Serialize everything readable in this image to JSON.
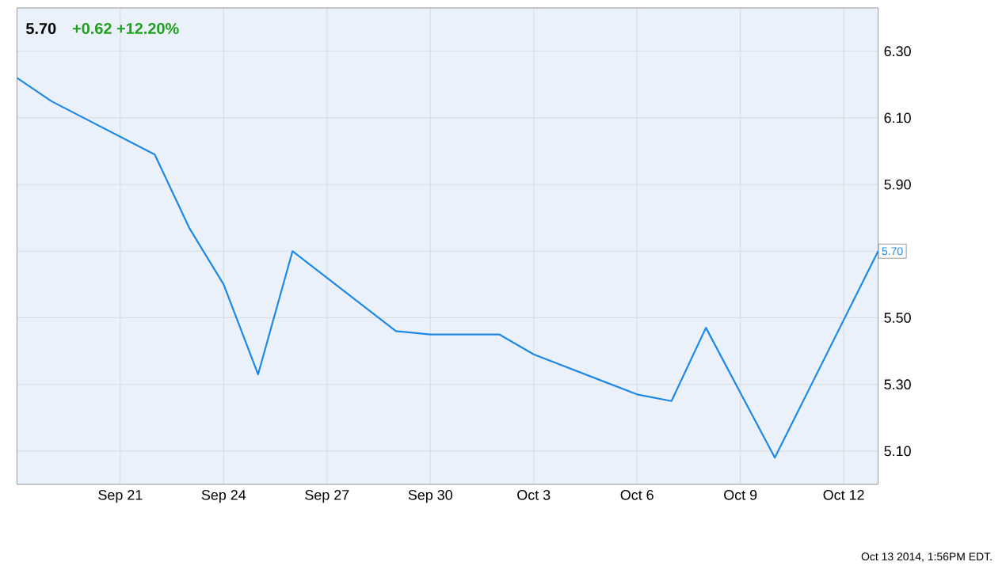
{
  "chart_data": {
    "type": "line",
    "title": "5.70",
    "subtitle": "+0.62 +12.20%",
    "annotations": [
      {
        "text": "5.70",
        "x": "2014-10-13",
        "y": 5.7
      },
      "Oct 13 2014, 1:56PM EDT."
    ],
    "x": [
      "2014-09-18",
      "2014-09-19",
      "2014-09-22",
      "2014-09-23",
      "2014-09-24",
      "2014-09-25",
      "2014-09-26",
      "2014-09-29",
      "2014-09-30",
      "2014-10-02",
      "2014-10-03",
      "2014-10-06",
      "2014-10-07",
      "2014-10-08",
      "2014-10-10",
      "2014-10-13"
    ],
    "series": [
      {
        "color": "#1e88e5",
        "values": [
          6.22,
          6.15,
          5.99,
          5.77,
          5.6,
          5.33,
          5.7,
          5.46,
          5.45,
          5.45,
          5.39,
          5.27,
          5.25,
          5.47,
          5.08,
          5.7
        ]
      }
    ],
    "xlim": [
      "2014-09-18",
      "2014-10-13"
    ],
    "xticks": [
      {
        "value": "2014-09-21",
        "label": "Sep 21"
      },
      {
        "value": "2014-09-24",
        "label": "Sep 24"
      },
      {
        "value": "2014-09-27",
        "label": "Sep 27"
      },
      {
        "value": "2014-09-30",
        "label": "Sep 30"
      },
      {
        "value": "2014-10-03",
        "label": "Oct 3"
      },
      {
        "value": "2014-10-06",
        "label": "Oct 6"
      },
      {
        "value": "2014-10-09",
        "label": "Oct 9"
      },
      {
        "value": "2014-10-12",
        "label": "Oct 12"
      }
    ],
    "ylim": [
      5.0,
      6.43
    ],
    "yticks": [
      {
        "value": 5.1,
        "label": "5.10"
      },
      {
        "value": 5.3,
        "label": "5.30"
      },
      {
        "value": 5.5,
        "label": "5.50"
      },
      {
        "value": 5.7,
        "label": null
      },
      {
        "value": 5.9,
        "label": "5.90"
      },
      {
        "value": 6.1,
        "label": "6.10"
      },
      {
        "value": 6.3,
        "label": "6.30"
      }
    ],
    "grid": true,
    "marker": "none",
    "line_style": "solid"
  }
}
